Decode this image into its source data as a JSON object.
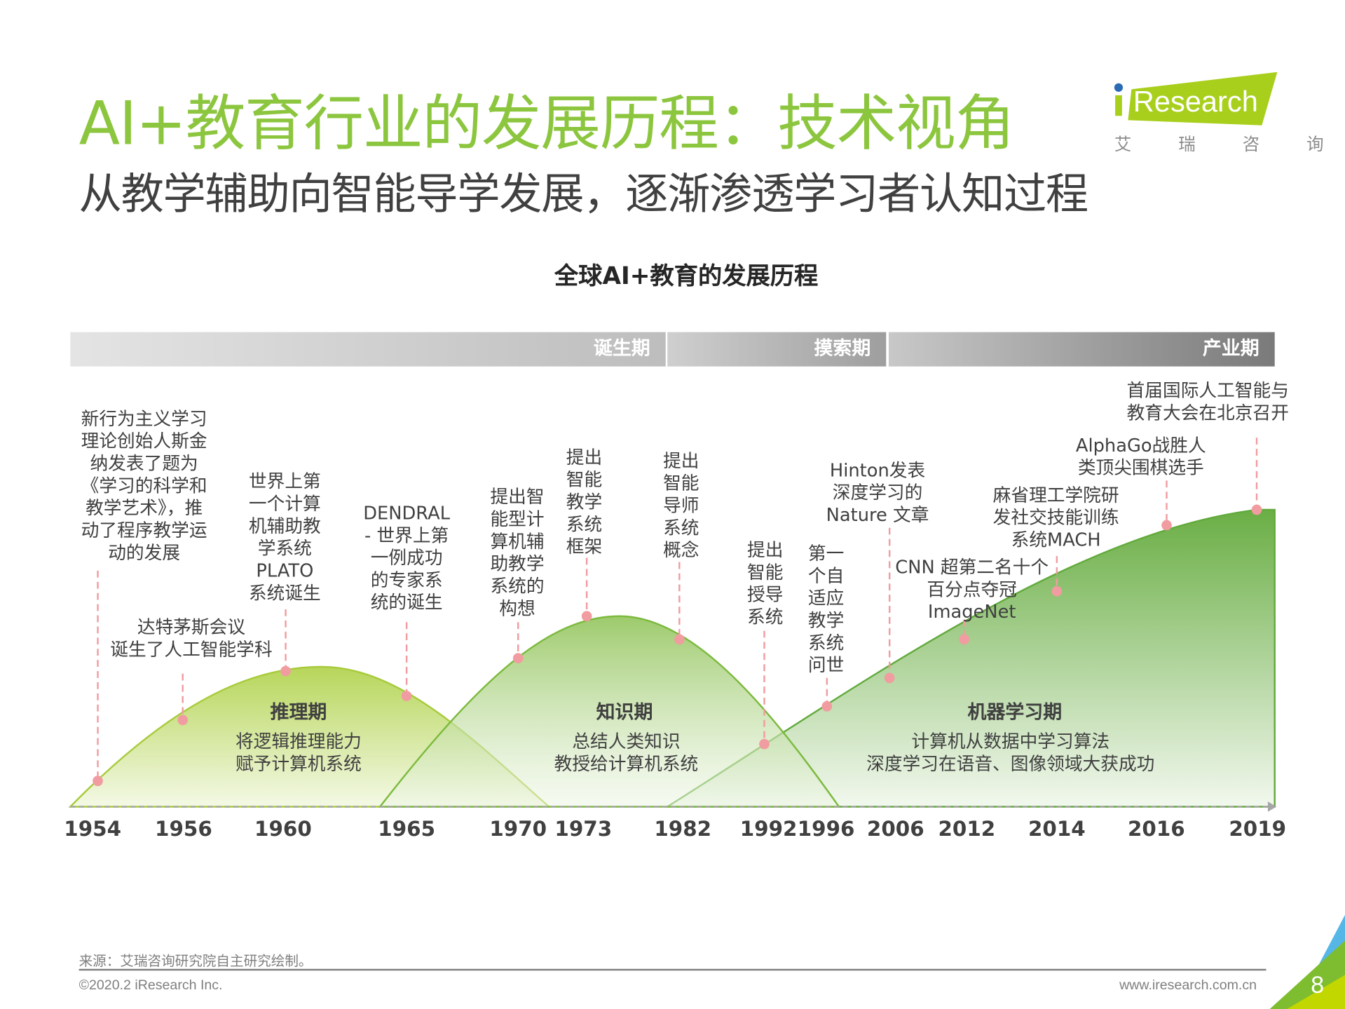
{
  "header": {
    "title": "AI+教育行业的发展历程：技术视角",
    "subtitle": "从教学辅助向智能导学发展，逐渐渗透学习者认知过程"
  },
  "logo": {
    "brand": "iResearch",
    "cn": "艾  瑞  咨  询",
    "colors": {
      "green": "#a8cf1c",
      "dot": "#2a6bb5"
    }
  },
  "chart": {
    "title": "全球AI+教育的发展历程",
    "phases": [
      {
        "label": "诞生期"
      },
      {
        "label": "摸索期"
      },
      {
        "label": "产业期"
      }
    ],
    "hills": [
      {
        "name": "推理期",
        "desc": "将逻辑推理能力\n赋予计算机系统"
      },
      {
        "name": "知识期",
        "desc": "总结人类知识\n教授给计算机系统"
      },
      {
        "name": "机器学习期",
        "desc": "计算机从数据中学习算法\n深度学习在语音、图像领域大获成功"
      }
    ],
    "events": [
      {
        "year": "1954",
        "label": "新行为主义学习\n理论创始人斯金\n纳发表了题为\n《学习的科学和\n教学艺术》，推\n动了程序教学运\n动的发展"
      },
      {
        "year": "1956",
        "label": "达特茅斯会议\n诞生了人工智能学科"
      },
      {
        "year": "1960",
        "label": "世界上第\n一个计算\n机辅助教\n学系统\nPLATO\n系统诞生"
      },
      {
        "year": "1965",
        "label": "DENDRAL\n- 世界上第\n一例成功\n的专家系\n统的诞生"
      },
      {
        "year": "1970",
        "label": "提出智\n能型计\n算机辅\n助教学\n系统的\n构想"
      },
      {
        "year": "1973",
        "label": "提出\n智能\n教学\n系统\n框架"
      },
      {
        "year": "1982",
        "label": "提出\n智能\n导师\n系统\n概念"
      },
      {
        "year": "1992",
        "label": "提出\n智能\n授导\n系统"
      },
      {
        "year": "1996",
        "label": "第一\n个自\n适应\n教学\n系统\n问世"
      },
      {
        "year": "2006",
        "label": "Hinton发表\n深度学习的\nNature 文章"
      },
      {
        "year": "2012",
        "label": "CNN 超第二名十个\n百分点夺冠\nImageNet"
      },
      {
        "year": "2014",
        "label": "麻省理工学院研\n发社交技能训练\n系统MACH"
      },
      {
        "year": "2016",
        "label": "AlphaGo战胜人\n类顶尖围棋选手"
      },
      {
        "year": "2019",
        "label": "首届国际人工智能与\n教育大会在北京召开"
      }
    ],
    "colors": {
      "title_green": "#8cc63e",
      "marker": "#f19ca0",
      "hill1": "#b7d65a",
      "hill2": "#8cc152",
      "hill3": "#6aae45"
    }
  },
  "footer": {
    "source": "来源：艾瑞咨询研究院自主研究绘制。",
    "copyright": "©2020.2 iResearch Inc.",
    "website": "www.iresearch.com.cn",
    "page": "8"
  }
}
